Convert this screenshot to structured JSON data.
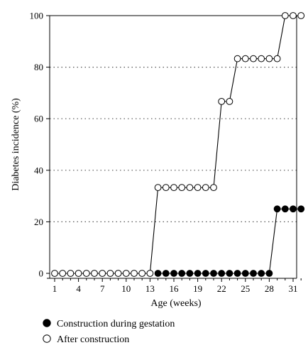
{
  "chart_data": {
    "type": "line",
    "xlabel": "Age (weeks)",
    "ylabel": "Diabetes incidence (%)",
    "xlim": [
      1,
      32
    ],
    "ylim": [
      0,
      100
    ],
    "x_ticks": [
      1,
      4,
      7,
      10,
      13,
      16,
      19,
      22,
      25,
      28,
      31
    ],
    "y_ticks": [
      0,
      20,
      40,
      60,
      80,
      100
    ],
    "grid": "horizontal dotted",
    "legend_position": "bottom-left",
    "series": [
      {
        "name": "Construction during gestation",
        "marker": "filled-circle",
        "color": "#000000",
        "x": [
          14,
          15,
          16,
          17,
          18,
          19,
          20,
          21,
          22,
          23,
          24,
          25,
          26,
          27,
          28,
          29,
          30,
          31,
          32
        ],
        "y": [
          0,
          0,
          0,
          0,
          0,
          0,
          0,
          0,
          0,
          0,
          0,
          0,
          0,
          0,
          0,
          25,
          25,
          25,
          25
        ]
      },
      {
        "name": "After construction",
        "marker": "open-circle",
        "color": "#000000",
        "x": [
          1,
          2,
          3,
          4,
          5,
          6,
          7,
          8,
          9,
          10,
          11,
          12,
          13,
          14,
          15,
          16,
          17,
          18,
          19,
          20,
          21,
          22,
          23,
          24,
          25,
          26,
          27,
          28,
          29,
          30,
          31,
          32
        ],
        "y": [
          0,
          0,
          0,
          0,
          0,
          0,
          0,
          0,
          0,
          0,
          0,
          0,
          0,
          33.3,
          33.3,
          33.3,
          33.3,
          33.3,
          33.3,
          33.3,
          33.3,
          66.7,
          66.7,
          83.3,
          83.3,
          83.3,
          83.3,
          83.3,
          83.3,
          100,
          100,
          100
        ]
      }
    ]
  }
}
